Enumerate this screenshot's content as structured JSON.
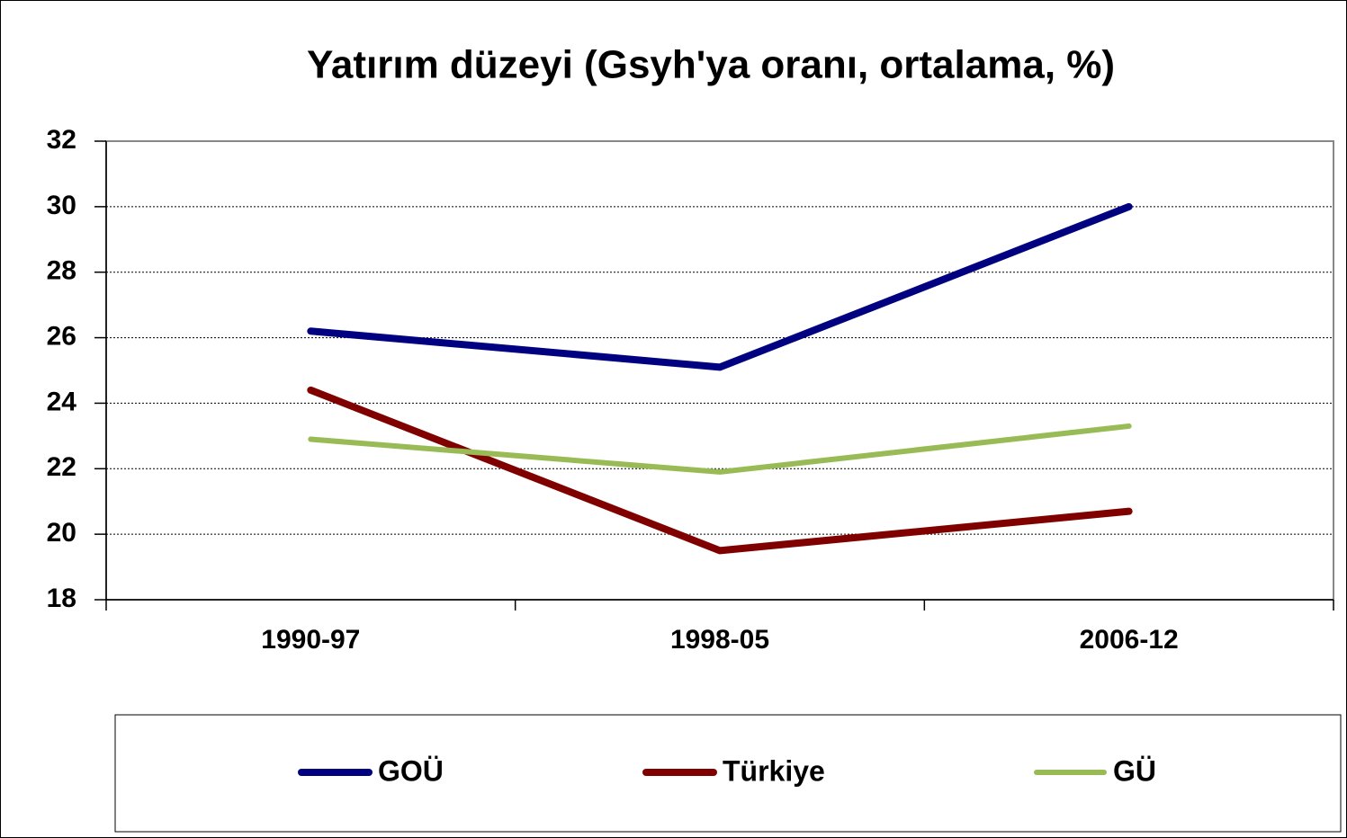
{
  "chart_data": {
    "type": "line",
    "title": "Yatırım düzeyi (Gsyh'ya oranı, ortalama, %)",
    "categories": [
      "1990-97",
      "1998-05",
      "2006-12"
    ],
    "series": [
      {
        "name": "GOÜ",
        "color": "#000080",
        "values": [
          26.2,
          25.1,
          30.0
        ]
      },
      {
        "name": "Türkiye",
        "color": "#800000",
        "values": [
          24.4,
          19.5,
          20.7
        ]
      },
      {
        "name": "GÜ",
        "color": "#99bb55",
        "values": [
          22.9,
          21.9,
          23.3
        ]
      }
    ],
    "ylim": [
      18,
      32
    ],
    "yticks": [
      18,
      20,
      22,
      24,
      26,
      28,
      30,
      32
    ],
    "grid": true,
    "legend": "bottom"
  }
}
